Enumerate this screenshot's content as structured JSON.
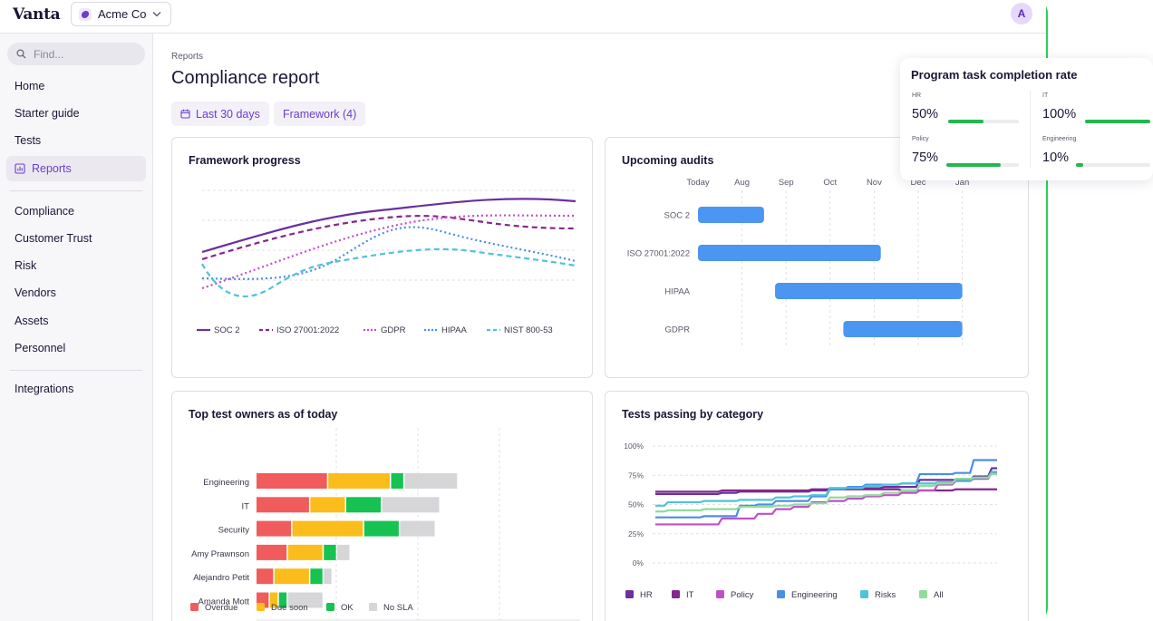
{
  "app": {
    "logo": "Vanta",
    "org": "Acme Co",
    "avatar": "A"
  },
  "sidebar": {
    "search_placeholder": "Find...",
    "items": [
      "Home",
      "Starter guide",
      "Tests",
      "Reports"
    ],
    "items2": [
      "Compliance",
      "Customer Trust",
      "Risk",
      "Vendors",
      "Assets",
      "Personnel"
    ],
    "items3": [
      "Integrations"
    ],
    "active": "Reports"
  },
  "page": {
    "breadcrumb": "Reports",
    "title": "Compliance report",
    "filter_date": "Last 30 days",
    "filter_framework": "Framework (4)"
  },
  "colors": {
    "purple_dark": "#6b2fa0",
    "purple_mid": "#86278c",
    "pink": "#c24fc9",
    "blue": "#4a8fe6",
    "cyan": "#4fc3da",
    "light_green": "#8fdc9a",
    "overdue": "#f05c5c",
    "due_soon": "#fbbd1b",
    "ok": "#16c251",
    "no_sla": "#d6d6d8",
    "bar_blue": "#4a96f0"
  },
  "popup": {
    "title": "Program task completion rate",
    "metrics": [
      {
        "label": "HR",
        "value": "50%",
        "pct": 50
      },
      {
        "label": "IT",
        "value": "100%",
        "pct": 100
      },
      {
        "label": "Policy",
        "value": "75%",
        "pct": 75
      },
      {
        "label": "Engineering",
        "value": "10%",
        "pct": 10
      }
    ]
  },
  "chart_data": [
    {
      "type": "line",
      "title": "Framework progress",
      "series": [
        {
          "name": "SOC 2",
          "style": "solid"
        },
        {
          "name": "ISO 27001:2022",
          "style": "dashed"
        },
        {
          "name": "GDPR",
          "style": "dotted"
        },
        {
          "name": "HIPAA",
          "style": "dotted"
        },
        {
          "name": "NIST 800-53",
          "style": "dashed"
        }
      ]
    },
    {
      "type": "bar",
      "title": "Upcoming audits",
      "orientation": "horizontal-timeline",
      "axis": [
        "Today",
        "Aug",
        "Sep",
        "Oct",
        "Nov",
        "Dec",
        "Jan"
      ],
      "audits": [
        {
          "name": "SOC 2",
          "start": 0,
          "end": 1.5
        },
        {
          "name": "ISO 27001:2022",
          "start": 0,
          "end": 4.15
        },
        {
          "name": "HIPAA",
          "start": 1.75,
          "end": 6
        },
        {
          "name": "GDPR",
          "start": 3.3,
          "end": 6
        }
      ]
    },
    {
      "type": "bar",
      "title": "Top test owners as of today",
      "orientation": "horizontal-stacked",
      "categories": [
        "Engineering",
        "IT",
        "Security",
        "Amy Prawnson",
        "Alejandro Petit",
        "Amanda Mott"
      ],
      "series": [
        {
          "name": "Overdue",
          "values": [
            16,
            12,
            8,
            7,
            4,
            3
          ]
        },
        {
          "name": "Due soon",
          "values": [
            14,
            8,
            16,
            8,
            8,
            2
          ]
        },
        {
          "name": "OK",
          "values": [
            3,
            8,
            8,
            3,
            3,
            2
          ]
        },
        {
          "name": "No SLA",
          "values": [
            12,
            13,
            8,
            3,
            2,
            8
          ]
        }
      ],
      "xlim": [
        0,
        72
      ]
    },
    {
      "type": "line",
      "title": "Tests passing by category",
      "yticks": [
        "100%",
        "75%",
        "50%",
        "25%",
        "0%"
      ],
      "ylim": [
        0,
        100
      ],
      "x": [
        0,
        1,
        2,
        3,
        4,
        5,
        6,
        7,
        8,
        9,
        10,
        11,
        12,
        13,
        14,
        15,
        16,
        17,
        18,
        19
      ],
      "series": [
        {
          "name": "HR",
          "values": [
            59,
            59,
            59,
            59,
            60,
            61,
            61,
            61,
            61,
            62,
            64,
            64,
            64,
            65,
            65,
            71,
            71,
            71,
            74,
            81
          ]
        },
        {
          "name": "IT",
          "values": [
            61,
            61,
            61,
            61,
            62,
            62,
            62,
            62,
            62,
            63,
            63,
            63,
            63,
            63,
            62,
            62,
            62,
            63,
            63,
            63
          ]
        },
        {
          "name": "Policy",
          "values": [
            33,
            33,
            33,
            33,
            38,
            38,
            42,
            46,
            48,
            52,
            53,
            55,
            57,
            58,
            60,
            62,
            67,
            70,
            72,
            77
          ]
        },
        {
          "name": "Engineering",
          "values": [
            39,
            39,
            39,
            40,
            40,
            49,
            50,
            53,
            53,
            57,
            63,
            65,
            67,
            67,
            68,
            76,
            76,
            77,
            88,
            88
          ]
        },
        {
          "name": "Risks",
          "values": [
            49,
            52,
            52,
            53,
            53,
            54,
            54,
            56,
            57,
            58,
            64,
            64,
            66,
            67,
            68,
            68,
            69,
            70,
            73,
            78
          ]
        },
        {
          "name": "All",
          "values": [
            44,
            45,
            45,
            46,
            46,
            48,
            48,
            49,
            50,
            51,
            56,
            57,
            58,
            60,
            62,
            66,
            68,
            72,
            73,
            76
          ]
        }
      ]
    }
  ]
}
